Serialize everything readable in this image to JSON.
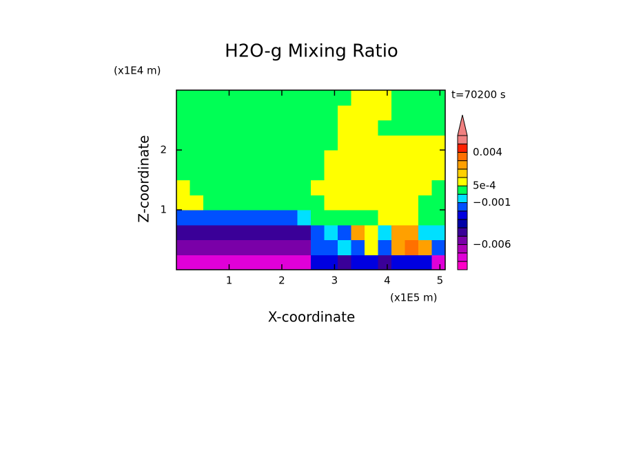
{
  "chart_data": {
    "type": "contour",
    "title": "H2O-g Mixing Ratio",
    "x_label": "X-coordinate",
    "y_label": "Z-coordinate",
    "x_unit": "(x1E5 m)",
    "y_unit": "(x1E4 m)",
    "time_label": "t=70200 s",
    "xlim": [
      0,
      5.1
    ],
    "ylim": [
      0,
      3
    ],
    "xticks": [
      1,
      2,
      3,
      4,
      5
    ],
    "yticks": [
      1,
      2
    ],
    "z": [
      [
        -0.0075,
        -0.0075,
        -0.0075,
        -0.0075,
        -0.0075,
        -0.0075,
        -0.0075,
        -0.0075,
        -0.0075,
        -0.0075,
        -0.0025,
        -0.0025,
        -0.0045,
        -0.0025,
        -0.0025,
        -0.0045,
        -0.0025,
        -0.0025,
        -0.0025,
        -0.0075
      ],
      [
        -0.0055,
        -0.0055,
        -0.0055,
        -0.0055,
        -0.0055,
        -0.0055,
        -0.0055,
        -0.0055,
        -0.0055,
        -0.0055,
        -0.0015,
        -0.0015,
        -0.0005,
        -0.0015,
        0.0007,
        -0.0015,
        0.0025,
        0.0035,
        0.0025,
        -0.0015
      ],
      [
        -0.0045,
        -0.0045,
        -0.0045,
        -0.0045,
        -0.0045,
        -0.0045,
        -0.0045,
        -0.0045,
        -0.0045,
        -0.0045,
        -0.0015,
        -0.0005,
        -0.0015,
        0.0025,
        0.0007,
        -0.0005,
        0.0025,
        0.0025,
        -0.0005,
        -0.0005
      ],
      [
        -0.0015,
        -0.0015,
        -0.0015,
        -0.0015,
        -0.0015,
        -0.0015,
        -0.0015,
        -0.0015,
        -0.0015,
        -0.0005,
        0.0002,
        0.0002,
        0.0002,
        0.0002,
        0.0002,
        0.0007,
        0.0007,
        0.0007,
        0.0002,
        0.0002
      ],
      [
        0.0007,
        0.0007,
        0.0002,
        0.0002,
        0.0002,
        0.0002,
        0.0002,
        0.0002,
        0.0002,
        0.0002,
        0.0002,
        0.0007,
        0.0007,
        0.0007,
        0.0007,
        0.0007,
        0.0007,
        0.0007,
        0.0002,
        0.0002
      ],
      [
        0.0007,
        0.0002,
        0.0002,
        0.0002,
        0.0002,
        0.0002,
        0.0002,
        0.0002,
        0.0002,
        0.0002,
        0.0007,
        0.0007,
        0.0007,
        0.0007,
        0.0007,
        0.0007,
        0.0007,
        0.0007,
        0.0007,
        0.0002
      ],
      [
        0.0002,
        0.0002,
        0.0002,
        0.0002,
        0.0002,
        0.0002,
        0.0002,
        0.0002,
        0.0002,
        0.0002,
        0.0002,
        0.0007,
        0.0007,
        0.0007,
        0.0007,
        0.0007,
        0.0007,
        0.0007,
        0.0007,
        0.0007
      ],
      [
        0.0002,
        0.0002,
        0.0002,
        0.0002,
        0.0002,
        0.0002,
        0.0002,
        0.0002,
        0.0002,
        0.0002,
        0.0002,
        0.0007,
        0.0007,
        0.0007,
        0.0007,
        0.0007,
        0.0007,
        0.0007,
        0.0007,
        0.0007
      ],
      [
        0.0002,
        0.0002,
        0.0002,
        0.0002,
        0.0002,
        0.0002,
        0.0002,
        0.0002,
        0.0002,
        0.0002,
        0.0002,
        0.0002,
        0.0007,
        0.0007,
        0.0007,
        0.0007,
        0.0007,
        0.0007,
        0.0007,
        0.0007
      ],
      [
        0.0002,
        0.0002,
        0.0002,
        0.0002,
        0.0002,
        0.0002,
        0.0002,
        0.0002,
        0.0002,
        0.0002,
        0.0002,
        0.0002,
        0.0007,
        0.0007,
        0.0007,
        0.0002,
        0.0002,
        0.0002,
        0.0002,
        0.0002
      ],
      [
        0.0002,
        0.0002,
        0.0002,
        0.0002,
        0.0002,
        0.0002,
        0.0002,
        0.0002,
        0.0002,
        0.0002,
        0.0002,
        0.0002,
        0.0007,
        0.0007,
        0.0007,
        0.0007,
        0.0002,
        0.0002,
        0.0002,
        0.0002
      ],
      [
        0.0002,
        0.0002,
        0.0002,
        0.0002,
        0.0002,
        0.0002,
        0.0002,
        0.0002,
        0.0002,
        0.0002,
        0.0002,
        0.0002,
        0.0002,
        0.0007,
        0.0007,
        0.0007,
        0.0002,
        0.0002,
        0.0002,
        0.0002
      ]
    ],
    "colorbar": {
      "levels": [
        -0.009,
        -0.008,
        -0.007,
        -0.006,
        -0.005,
        -0.004,
        -0.003,
        -0.002,
        -0.001,
        0,
        0.0005,
        0.001,
        0.002,
        0.003,
        0.004,
        0.005,
        0.006
      ],
      "colors": [
        "#ff00c8",
        "#e000d8",
        "#b000b8",
        "#7a00a8",
        "#3a0098",
        "#0000a8",
        "#0000e0",
        "#0050ff",
        "#00e0ff",
        "#00ff55",
        "#ffff00",
        "#ffd000",
        "#ffa000",
        "#ff7000",
        "#ff2000",
        "#f08080"
      ],
      "extend_color": "#f08080",
      "ticks": [
        {
          "value": 0.004,
          "label": "0.004"
        },
        {
          "value": 0.0005,
          "label": "5e-4"
        },
        {
          "value": -0.001,
          "label": "−0.001"
        },
        {
          "value": -0.006,
          "label": "−0.006"
        }
      ]
    }
  }
}
